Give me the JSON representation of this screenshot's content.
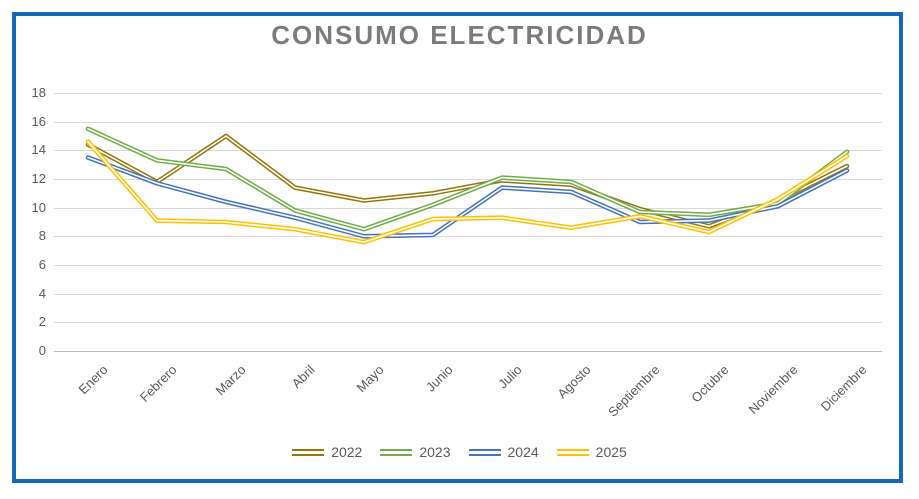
{
  "chart_data": {
    "type": "line",
    "title": "CONSUMO ELECTRICIDAD",
    "categories": [
      "Enero",
      "Febrero",
      "Marzo",
      "Abril",
      "Mayo",
      "Junio",
      "Julio",
      "Agosto",
      "Septiembre",
      "Octubre",
      "Noviembre",
      "Diciembre"
    ],
    "series": [
      {
        "name": "2022",
        "color": "#96760B",
        "values": [
          14.4,
          11.8,
          15.0,
          11.4,
          10.5,
          11.0,
          11.9,
          11.6,
          9.9,
          8.7,
          10.5,
          12.9
        ]
      },
      {
        "name": "2023",
        "color": "#70AD47",
        "values": [
          15.5,
          13.3,
          12.7,
          9.8,
          8.5,
          10.2,
          12.1,
          11.8,
          9.7,
          9.5,
          10.3,
          13.9
        ]
      },
      {
        "name": "2024",
        "color": "#4472C4",
        "values": [
          13.5,
          11.7,
          10.4,
          9.3,
          8.0,
          8.1,
          11.4,
          11.1,
          9.0,
          9.1,
          10.1,
          12.6
        ]
      },
      {
        "name": "2025",
        "color": "#FFC000",
        "values": [
          14.6,
          9.1,
          9.0,
          8.5,
          7.6,
          9.2,
          9.3,
          8.6,
          9.4,
          8.3,
          10.6,
          13.6
        ]
      }
    ],
    "ylabel": "",
    "xlabel": "",
    "ylim": [
      0,
      18
    ],
    "y_tick_step": 2,
    "y_ticks": [
      0,
      2,
      4,
      6,
      8,
      10,
      12,
      14,
      16,
      18
    ],
    "grid": true,
    "legend_position": "bottom",
    "line_style": "double-compound",
    "style": {
      "frame_border_color": "#1568B8",
      "title_color": "#7B7B7B",
      "gridline_color": "#D9D9D9",
      "axis_text_color": "#595959",
      "background": "#FFFFFF"
    }
  }
}
